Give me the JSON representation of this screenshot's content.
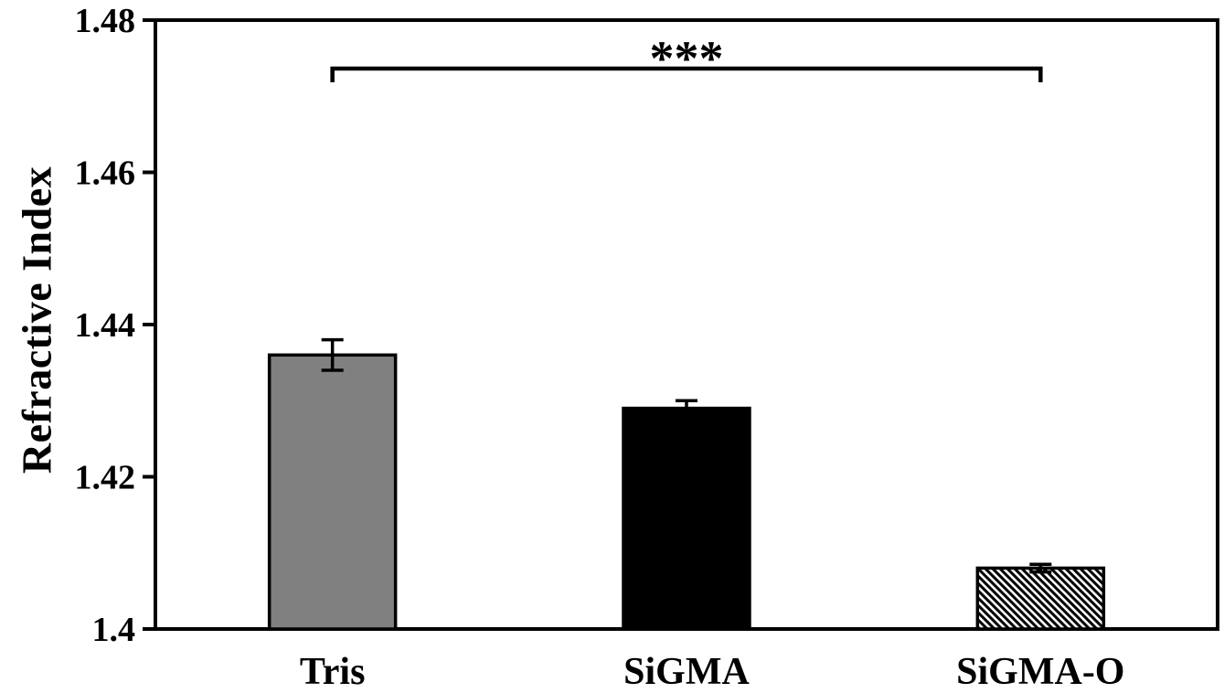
{
  "figure": {
    "kind": "scientific-bar-figure",
    "background_color": "#ffffff",
    "ink_color": "#000000"
  },
  "chart_data": {
    "type": "bar",
    "title": "",
    "xlabel": "",
    "ylabel": "Refractive Index",
    "categories": [
      "Tris",
      "SiGMA",
      "SiGMA-O"
    ],
    "values": [
      1.436,
      1.429,
      1.408
    ],
    "errors": [
      0.002,
      0.001,
      0.0005
    ],
    "ylim": [
      1.4,
      1.48
    ],
    "yticks": [
      1.4,
      1.42,
      1.44,
      1.46,
      1.48
    ],
    "ytick_labels": [
      "1.4",
      "1.42",
      "1.44",
      "1.46",
      "1.48"
    ],
    "grid": false,
    "legend": false,
    "frame": "full-box",
    "bar_edge_color": "#000000",
    "bar_styles": [
      {
        "fill": "#808080",
        "pattern": "solid",
        "description": "solid gray"
      },
      {
        "fill": "#000000",
        "pattern": "solid",
        "description": "solid black"
      },
      {
        "fill": "#ffffff",
        "pattern": "diagonal-hatch",
        "description": "white with backslash diagonal hatching"
      }
    ],
    "significance": {
      "label": "***",
      "from_index": 0,
      "to_index": 2
    }
  }
}
